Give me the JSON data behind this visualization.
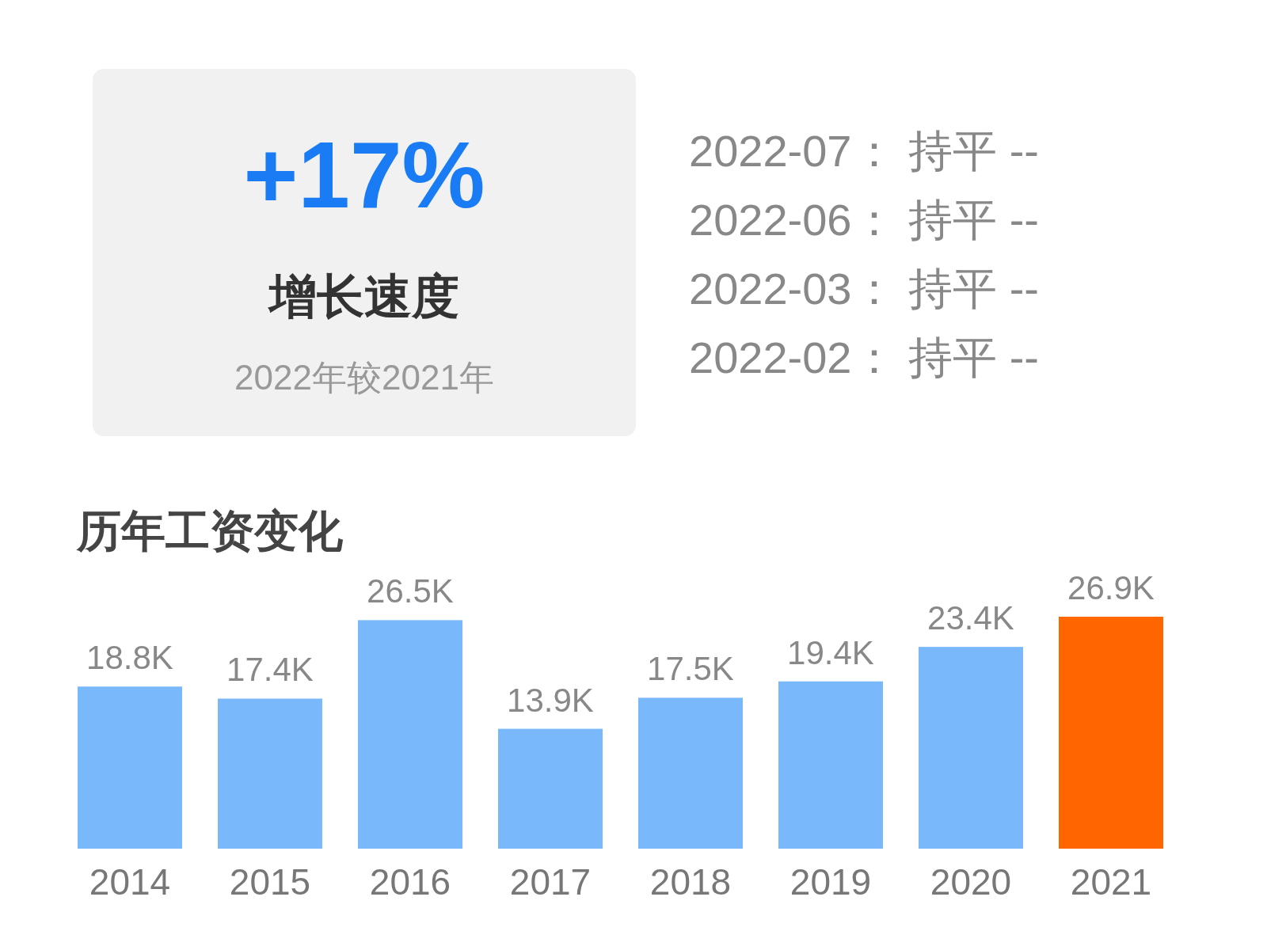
{
  "chart_data": [
    {
      "type": "other",
      "title": "+17%",
      "subtitle": "增长速度",
      "annotations": [
        "2022年较2021年",
        "2022-07： 持平 --",
        "2022-06： 持平 --",
        "2022-03： 持平 --",
        "2022-02： 持平 --"
      ]
    },
    {
      "type": "bar",
      "title": "历年工资变化",
      "categories": [
        "2014",
        "2015",
        "2016",
        "2017",
        "2018",
        "2019",
        "2020",
        "2021"
      ],
      "values": [
        18.8,
        17.4,
        26.5,
        13.9,
        17.5,
        19.4,
        23.4,
        26.9
      ],
      "colors": [
        "#7ab8fc",
        "#7ab8fc",
        "#7ab8fc",
        "#7ab8fc",
        "#7ab8fc",
        "#7ab8fc",
        "#7ab8fc",
        "#ff6600"
      ],
      "value_labels": [
        "18.8K",
        "17.4K",
        "26.5K",
        "13.9K",
        "17.5K",
        "19.4K",
        "23.4K",
        "26.9K"
      ]
    }
  ]
}
